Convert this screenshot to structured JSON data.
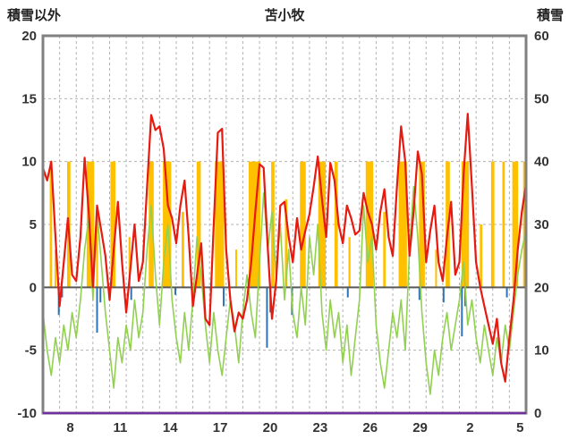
{
  "chart_data": {
    "type": "line",
    "title": "苫小牧",
    "left_axis": {
      "label": "積雪以外",
      "min": -10,
      "max": 20,
      "ticks": [
        20,
        15,
        10,
        5,
        0,
        -5,
        -10
      ]
    },
    "right_axis": {
      "label": "積雪",
      "min": 0,
      "max": 60,
      "ticks": [
        60,
        50,
        40,
        30,
        20,
        10,
        0
      ]
    },
    "x_axis": {
      "range": [
        0,
        29
      ],
      "grid_step": 1,
      "tick_positions": [
        1.64,
        4.64,
        7.64,
        10.64,
        13.64,
        16.64,
        19.64,
        22.64,
        25.64,
        28.64
      ],
      "tick_labels": [
        "8",
        "11",
        "14",
        "17",
        "20",
        "23",
        "26",
        "29",
        "2",
        "5"
      ]
    },
    "sample_step": 0.25,
    "series": [
      {
        "name": "green-indicator-line",
        "color": "#92d050",
        "width": 1.6,
        "axis": "left",
        "values": [
          -2,
          -5,
          -7,
          -4,
          -6,
          -3,
          -5,
          -2,
          -4,
          -1,
          3,
          5.5,
          -1,
          6,
          2,
          -2,
          -5,
          -8,
          -4,
          -6,
          -3,
          -5,
          -1,
          -4,
          -2,
          3,
          6.5,
          1,
          -3,
          2,
          5,
          -1,
          -4,
          -6,
          -2,
          -5,
          -1,
          4,
          1,
          -3,
          -6,
          -2,
          -5,
          -7,
          -4,
          -1,
          -3,
          -6,
          -2,
          1,
          -2,
          -4,
          2,
          7.5,
          3,
          6,
          1,
          5,
          -1,
          3,
          -2,
          -4,
          0,
          -3,
          4,
          1,
          5,
          -2,
          -5,
          -1,
          -4,
          -2,
          -6,
          -3,
          -7,
          -4,
          -1,
          6.5,
          2,
          4,
          -3,
          -6,
          -8,
          -5,
          -2,
          -4,
          -1,
          -5,
          3,
          8,
          4,
          -2,
          -6,
          -8.5,
          -5,
          -7,
          -4,
          -2,
          -5,
          -3,
          -1,
          2,
          -3,
          -1,
          -4,
          -6,
          -3,
          -5,
          -7,
          -4,
          -6,
          -3,
          -5,
          -2,
          1,
          3,
          4.5
        ]
      },
      {
        "name": "temperature-line",
        "color": "#e8190f",
        "width": 2.2,
        "axis": "left",
        "values": [
          9.5,
          8.5,
          10,
          4,
          -1.5,
          2,
          5.5,
          1,
          0.5,
          4,
          10.3,
          6,
          0,
          6.5,
          4.5,
          2.5,
          -1,
          3,
          6.8,
          2,
          -2,
          1.5,
          5,
          0.5,
          2,
          8,
          13.7,
          12.5,
          12.8,
          11,
          6.5,
          5.5,
          3.5,
          6.5,
          8.5,
          4,
          -1.5,
          1,
          3.5,
          -2.5,
          -3,
          5,
          12.3,
          12.6,
          3,
          -1,
          -3.5,
          -2,
          -2.5,
          -1,
          2,
          6,
          9.8,
          9.5,
          3,
          -2.5,
          0.5,
          6.5,
          6.8,
          4,
          2,
          5.5,
          3,
          4.5,
          5.8,
          8,
          10.4,
          7,
          4,
          9.9,
          8.5,
          5,
          3.5,
          6.5,
          5.5,
          4.2,
          4.5,
          7.5,
          6,
          5,
          3,
          6,
          7.8,
          4,
          2.5,
          8,
          12.8,
          10,
          2.5,
          6,
          10.8,
          9,
          2,
          4.5,
          6.5,
          2,
          0.5,
          4,
          6.8,
          1,
          2,
          9,
          13.8,
          8,
          2,
          0,
          -1.5,
          -3,
          -4.5,
          -2.5,
          -6,
          -7.5,
          -4,
          -1,
          3,
          6,
          8.2
        ]
      }
    ],
    "sunshine_bars": {
      "name": "sunshine-bars",
      "color": "#ffc000",
      "axis": "left",
      "bars": [
        [
          0.48,
          0.15,
          10
        ],
        [
          0.75,
          0.1,
          3
        ],
        [
          1.55,
          0.2,
          10
        ],
        [
          2.85,
          0.45,
          10
        ],
        [
          3.25,
          0.1,
          5
        ],
        [
          4.2,
          0.3,
          10
        ],
        [
          5.2,
          0.12,
          4
        ],
        [
          6.5,
          0.3,
          10
        ],
        [
          7.45,
          0.5,
          10
        ],
        [
          8.4,
          0.15,
          6
        ],
        [
          9.35,
          0.25,
          10
        ],
        [
          10.6,
          0.55,
          10
        ],
        [
          11.6,
          0.1,
          3
        ],
        [
          12.7,
          0.7,
          10
        ],
        [
          13.8,
          0.2,
          10
        ],
        [
          14.6,
          0.15,
          7
        ],
        [
          15.6,
          0.35,
          10
        ],
        [
          16.75,
          0.45,
          10
        ],
        [
          17.6,
          0.2,
          10
        ],
        [
          18.4,
          0.12,
          4
        ],
        [
          19.6,
          0.45,
          10
        ],
        [
          20.5,
          0.15,
          6
        ],
        [
          21.6,
          0.5,
          10
        ],
        [
          22.75,
          0.35,
          10
        ],
        [
          23.6,
          0.1,
          3
        ],
        [
          24.3,
          0.25,
          10
        ],
        [
          25.35,
          0.45,
          10
        ],
        [
          26.3,
          0.15,
          5
        ],
        [
          27.0,
          0.2,
          10
        ],
        [
          27.65,
          0.15,
          10
        ],
        [
          28.35,
          0.35,
          10
        ],
        [
          28.9,
          0.15,
          10
        ]
      ]
    },
    "precip_bars": {
      "name": "precipitation-bars",
      "color": "#2e74b5",
      "axis": "left",
      "bars": [
        [
          0.95,
          0.08,
          -2.2
        ],
        [
          1.15,
          0.08,
          -0.8
        ],
        [
          3.25,
          0.08,
          -3.6
        ],
        [
          3.45,
          0.08,
          -1.2
        ],
        [
          5.3,
          0.08,
          -1.0
        ],
        [
          7.95,
          0.08,
          -0.6
        ],
        [
          10.85,
          0.08,
          -1.5
        ],
        [
          13.45,
          0.08,
          -4.8
        ],
        [
          13.65,
          0.08,
          -2.0
        ],
        [
          14.95,
          0.08,
          -2.2
        ],
        [
          18.3,
          0.08,
          -0.8
        ],
        [
          22.6,
          0.08,
          -1.0
        ],
        [
          24.05,
          0.08,
          -1.2
        ],
        [
          25.15,
          0.08,
          -3.9
        ],
        [
          25.35,
          0.08,
          -1.5
        ],
        [
          27.85,
          0.08,
          -0.8
        ]
      ]
    },
    "snow_line": {
      "name": "snow-depth-line",
      "color": "#7030a0",
      "width": 2.5,
      "axis": "right",
      "points": [
        [
          0,
          0
        ],
        [
          29,
          0
        ]
      ]
    },
    "style": {
      "frame_color": "#808080",
      "grid_color": "#b3b3b3",
      "zero_color": "#595959",
      "text_color": "#333333",
      "dashed_levels": [
        15,
        10,
        5,
        -5
      ]
    }
  }
}
